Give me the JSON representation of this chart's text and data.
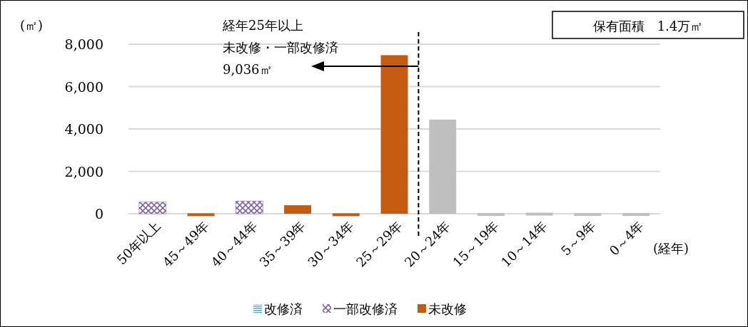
{
  "chart_data": {
    "type": "bar",
    "categories": [
      "50年以上",
      "45～49年",
      "40～44年",
      "35～39年",
      "30～34年",
      "25～29年",
      "20～24年",
      "15～19年",
      "10～14年",
      "5～9年",
      "0～4年"
    ],
    "series": [
      {
        "name": "改修済",
        "color": "#4bacc6",
        "values": [
          0,
          0,
          0,
          0,
          0,
          0,
          0,
          0,
          0,
          0,
          0
        ]
      },
      {
        "name": "一部改修済",
        "color": "#7f66a0",
        "values": [
          550,
          null,
          600,
          null,
          null,
          null,
          null,
          null,
          null,
          null,
          null
        ]
      },
      {
        "name": "未改修",
        "color": "#c55a11",
        "values": [
          null,
          20,
          null,
          400,
          20,
          7480,
          null,
          null,
          null,
          null,
          null
        ]
      },
      {
        "color": "#bfbfbf",
        "values": [
          null,
          null,
          null,
          null,
          null,
          null,
          4440,
          30,
          50,
          30,
          30
        ]
      }
    ],
    "ylim": [
      0,
      8000
    ],
    "yticks": [
      {
        "value": 0,
        "label": "0"
      },
      {
        "value": 2000,
        "label": "2,000"
      },
      {
        "value": 4000,
        "label": "4,000"
      },
      {
        "value": 6000,
        "label": "6,000"
      },
      {
        "value": 8000,
        "label": "8,000"
      }
    ],
    "ylabel": "(㎡)",
    "xlabel": "(経年)",
    "grid": "y",
    "legend": "bottom",
    "annotations": [
      "経年25年以上",
      "未改修・一部改修済",
      "9,036㎡",
      "保有面積　1.4万㎡"
    ]
  }
}
